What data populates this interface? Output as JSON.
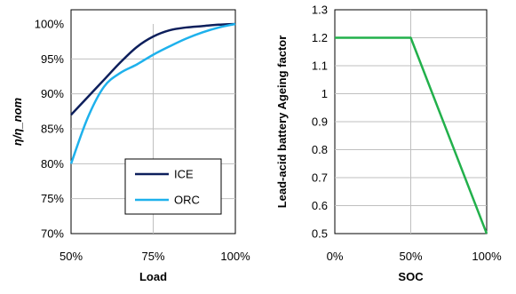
{
  "chart_data": [
    {
      "type": "line",
      "xlabel": "Load",
      "ylabel": "η/η_nom",
      "x_tick_labels": [
        "50%",
        "75%",
        "100%"
      ],
      "y_tick_labels": [
        "70%",
        "75%",
        "80%",
        "85%",
        "90%",
        "95%",
        "100%"
      ],
      "xlim": [
        50,
        100
      ],
      "ylim": [
        70,
        100
      ],
      "grid": true,
      "legend_position": "bottom-right",
      "series": [
        {
          "name": "ICE",
          "color": "#0d1f5c",
          "x": [
            50,
            55,
            60,
            65,
            70,
            75,
            80,
            85,
            90,
            95,
            100
          ],
          "y": [
            87,
            89.5,
            92,
            94.5,
            96.7,
            98.2,
            99.1,
            99.5,
            99.7,
            99.9,
            100
          ]
        },
        {
          "name": "ORC",
          "color": "#1eb1ec",
          "x": [
            50,
            55,
            60,
            65,
            70,
            75,
            80,
            85,
            90,
            95,
            100
          ],
          "y": [
            80,
            86.5,
            91,
            93,
            94.2,
            95.6,
            96.8,
            97.9,
            98.8,
            99.5,
            100
          ]
        }
      ]
    },
    {
      "type": "line",
      "xlabel": "SOC",
      "ylabel": "Lead-acid battery Ageing factor",
      "x_tick_labels": [
        "0%",
        "50%",
        "100%"
      ],
      "y_tick_labels": [
        "0.5",
        "0.6",
        "0.7",
        "0.8",
        "0.9",
        "1",
        "1.1",
        "1.2",
        "1.3"
      ],
      "xlim": [
        0,
        100
      ],
      "ylim": [
        0.5,
        1.3
      ],
      "grid": true,
      "series": [
        {
          "color": "#22b04b",
          "x": [
            0,
            50,
            100
          ],
          "y": [
            1.2,
            1.2,
            0.5
          ]
        }
      ]
    }
  ]
}
